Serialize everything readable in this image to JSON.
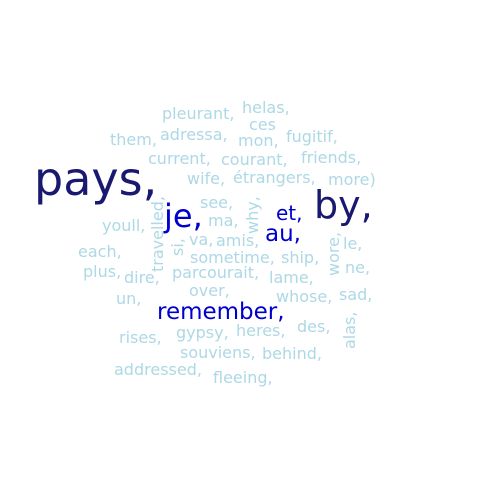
{
  "words": {
    "pays": "pays,",
    "by": "by,",
    "je": "je,",
    "remember": "remember,",
    "au": "au,",
    "et": "et,",
    "pleurant": "pleurant,",
    "helas": "helas,",
    "ces": "ces",
    "mon": "mon,",
    "fugitif": "fugitif,",
    "them": "them,",
    "adressa": "adressa,",
    "friends": "friends,",
    "current": "current,",
    "courant": "courant,",
    "wife": "wife,",
    "etrangers": "étrangers,",
    "more": "more)",
    "youll": "youll,",
    "travelled": "travelled,",
    "see": "see,",
    "ma": "ma,",
    "why": "why,",
    "si": "si,",
    "va": "va,",
    "amis": "amis,",
    "le": "le,",
    "each": "each,",
    "sometime": "sometime,",
    "ship": "ship,",
    "wore": "wore,",
    "ne": "ne,",
    "plus": "plus,",
    "dire": "dire,",
    "parcourait": "parcourait,",
    "lame": "lame,",
    "un": "un,",
    "over": "over,",
    "whose": "whose,",
    "sad": "sad,",
    "gypsy": "gypsy,",
    "heres": "heres,",
    "des": "des,",
    "alas": "alas,",
    "rises": "rises,",
    "souviens": "souviens,",
    "behind": "behind,",
    "addressed": "addressed,",
    "fleeing": "fleeing,"
  },
  "colors": {
    "light": "#add8e6",
    "dark": "#191970",
    "blue": "#0000cd"
  }
}
